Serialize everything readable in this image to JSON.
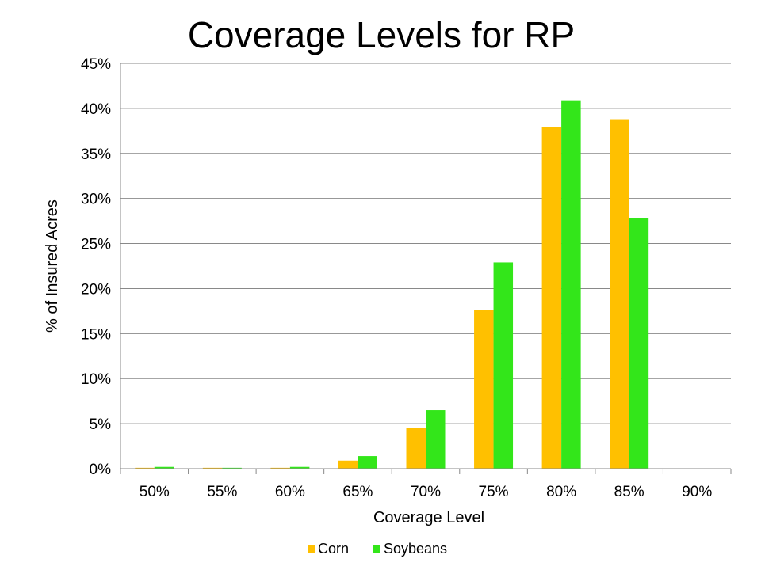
{
  "chart_data": {
    "type": "bar",
    "title": "Coverage Levels for RP",
    "xlabel": "Coverage Level",
    "ylabel": "% of Insured Acres",
    "categories": [
      "50%",
      "55%",
      "60%",
      "65%",
      "70%",
      "75%",
      "80%",
      "85%",
      "90%"
    ],
    "series": [
      {
        "name": "Corn",
        "color": "#FFC000",
        "values": [
          0.1,
          0.1,
          0.1,
          0.9,
          4.5,
          17.6,
          37.9,
          38.8,
          0.0
        ]
      },
      {
        "name": "Soybeans",
        "color": "#33E61A",
        "values": [
          0.2,
          0.1,
          0.2,
          1.4,
          6.5,
          22.9,
          40.9,
          27.8,
          0.0
        ]
      }
    ],
    "ylim": [
      0,
      45
    ],
    "ytick_values": [
      0,
      5,
      10,
      15,
      20,
      25,
      30,
      35,
      40,
      45
    ],
    "ytick_labels": [
      "0%",
      "5%",
      "10%",
      "15%",
      "20%",
      "25%",
      "30%",
      "35%",
      "40%",
      "45%"
    ],
    "grid": true,
    "legend_position": "bottom",
    "gridline_color": "#898989"
  }
}
